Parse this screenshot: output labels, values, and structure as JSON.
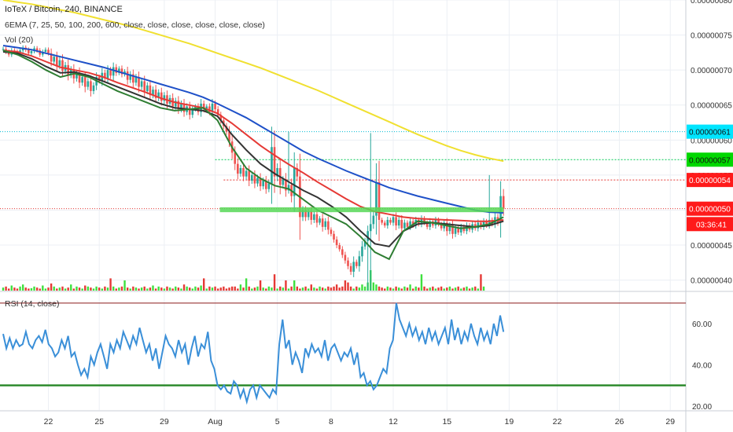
{
  "header": {
    "symbol": "IoTeX / Bitcoin, 240, BINANCE",
    "ema_legend": "6EMA (7, 25, 50, 100, 200, 600, close, close, close, close, close, close)",
    "vol_legend": "Vol (20)",
    "rsi_legend": "RSI (14, close)"
  },
  "colors": {
    "up": "#26a69a",
    "down": "#ef5350",
    "vol_up": "#3ee03e",
    "vol_down": "#e53935",
    "ema_7": "#2e7d32",
    "ema_25": "#333333",
    "ema_50": "#e53935",
    "ema_100": "#1e50c8",
    "ema_200": "#f0e030",
    "rsi_line": "#3a8fd8",
    "grid": "#eceff4",
    "hline_cyan": "#00bcd4",
    "hline_green": "#00c853",
    "hline_red": "#e53935",
    "rsi_upper": "#8b1a1a",
    "rsi_lower": "#2e8b2e"
  },
  "chart_data": {
    "type": "candlestick",
    "price_axis": {
      "ticks": [
        "0.00000040",
        "0.00000045",
        "0.00000050",
        "0.00000055",
        "0.00000060",
        "0.00000065",
        "0.00000070",
        "0.00000075",
        "0.00000080"
      ],
      "range": [
        3.85e-07,
        8e-07
      ]
    },
    "price_labels": [
      {
        "text": "0.00000061",
        "value": 6.12e-07,
        "style": "cyan"
      },
      {
        "text": "0.00000057",
        "value": 5.72e-07,
        "style": "green"
      },
      {
        "text": "0.00000054",
        "value": 5.43e-07,
        "style": "red"
      },
      {
        "text": "0.00000050",
        "value": 5.02e-07,
        "style": "red"
      },
      {
        "text": "03:36:41",
        "value": 4.8e-07,
        "style": "red"
      }
    ],
    "x_ticks": [
      {
        "label": "22",
        "index": 16
      },
      {
        "label": "25",
        "index": 34
      },
      {
        "label": "29",
        "index": 57
      },
      {
        "label": "Aug",
        "index": 75
      },
      {
        "label": "5",
        "index": 97
      },
      {
        "label": "8",
        "index": 116
      },
      {
        "label": "12",
        "index": 138
      },
      {
        "label": "15",
        "index": 157
      },
      {
        "label": "19",
        "index": 179
      },
      {
        "label": "22",
        "index": 196
      },
      {
        "label": "26",
        "index": 218
      },
      {
        "label": "29",
        "index": 236
      }
    ],
    "close_series": [
      0.73,
      0.726,
      0.722,
      0.728,
      0.726,
      0.724,
      0.728,
      0.732,
      0.729,
      0.724,
      0.727,
      0.731,
      0.728,
      0.722,
      0.726,
      0.729,
      0.724,
      0.712,
      0.719,
      0.706,
      0.714,
      0.699,
      0.707,
      0.693,
      0.701,
      0.688,
      0.696,
      0.682,
      0.69,
      0.676,
      0.684,
      0.67,
      0.678,
      0.69,
      0.684,
      0.696,
      0.688,
      0.7,
      0.692,
      0.704,
      0.696,
      0.702,
      0.694,
      0.698,
      0.686,
      0.694,
      0.682,
      0.69,
      0.676,
      0.684,
      0.67,
      0.678,
      0.664,
      0.672,
      0.66,
      0.668,
      0.656,
      0.664,
      0.652,
      0.66,
      0.648,
      0.656,
      0.644,
      0.652,
      0.64,
      0.648,
      0.636,
      0.644,
      0.648,
      0.64,
      0.652,
      0.644,
      0.648,
      0.64,
      0.652,
      0.644,
      0.636,
      0.628,
      0.62,
      0.612,
      0.598,
      0.582,
      0.566,
      0.552,
      0.56,
      0.548,
      0.556,
      0.542,
      0.55,
      0.538,
      0.546,
      0.534,
      0.542,
      0.53,
      0.538,
      0.59,
      0.548,
      0.56,
      0.536,
      0.544,
      0.528,
      0.536,
      0.52,
      0.56,
      0.548,
      0.49,
      0.5,
      0.49,
      0.498,
      0.486,
      0.494,
      0.482,
      0.488,
      0.476,
      0.484,
      0.472,
      0.466,
      0.458,
      0.45,
      0.444,
      0.436,
      0.428,
      0.42,
      0.412,
      0.426,
      0.42,
      0.434,
      0.448,
      0.456,
      0.47,
      0.48,
      0.492,
      0.54,
      0.486,
      0.482,
      0.478,
      0.486,
      0.482,
      0.49,
      0.478,
      0.486,
      0.474,
      0.482,
      0.476,
      0.484,
      0.478,
      0.486,
      0.48,
      0.488,
      0.482,
      0.476,
      0.484,
      0.478,
      0.486,
      0.48,
      0.474,
      0.482,
      0.47,
      0.478,
      0.466,
      0.474,
      0.468,
      0.476,
      0.47,
      0.478,
      0.472,
      0.48,
      0.474,
      0.482,
      0.476,
      0.484,
      0.478,
      0.486,
      0.48,
      0.49,
      0.482,
      0.52,
      0.502
    ],
    "emas": [
      {
        "name": "EMA 200",
        "color_key": "ema_200",
        "values": [
          0.8,
          0.797,
          0.794,
          0.79,
          0.786,
          0.782,
          0.777,
          0.772,
          0.767,
          0.762,
          0.756,
          0.75,
          0.744,
          0.738,
          0.731,
          0.724,
          0.717,
          0.71,
          0.703,
          0.695,
          0.687,
          0.679,
          0.671,
          0.662,
          0.653,
          0.644,
          0.635,
          0.626,
          0.617,
          0.608,
          0.6,
          0.592,
          0.585,
          0.579,
          0.574,
          0.57
        ]
      },
      {
        "name": "EMA 100",
        "color_key": "ema_100",
        "values": [
          0.735,
          0.732,
          0.729,
          0.724,
          0.719,
          0.714,
          0.709,
          0.704,
          0.698,
          0.692,
          0.686,
          0.68,
          0.674,
          0.668,
          0.661,
          0.652,
          0.642,
          0.632,
          0.62,
          0.608,
          0.596,
          0.584,
          0.574,
          0.565,
          0.556,
          0.548,
          0.54,
          0.532,
          0.526,
          0.52,
          0.515,
          0.51,
          0.505,
          0.5,
          0.497,
          0.496
        ]
      },
      {
        "name": "EMA 50",
        "color_key": "ema_50",
        "values": [
          0.728,
          0.726,
          0.72,
          0.712,
          0.704,
          0.7,
          0.696,
          0.69,
          0.682,
          0.675,
          0.668,
          0.66,
          0.654,
          0.65,
          0.646,
          0.638,
          0.624,
          0.608,
          0.592,
          0.578,
          0.565,
          0.553,
          0.54,
          0.528,
          0.516,
          0.505,
          0.498,
          0.494,
          0.49,
          0.488,
          0.487,
          0.486,
          0.485,
          0.484,
          0.484,
          0.486
        ]
      },
      {
        "name": "EMA 25",
        "color_key": "ema_25",
        "values": [
          0.726,
          0.724,
          0.716,
          0.705,
          0.696,
          0.697,
          0.692,
          0.684,
          0.676,
          0.668,
          0.66,
          0.652,
          0.646,
          0.644,
          0.642,
          0.634,
          0.608,
          0.586,
          0.566,
          0.552,
          0.54,
          0.528,
          0.518,
          0.505,
          0.49,
          0.47,
          0.452,
          0.448,
          0.47,
          0.48,
          0.482,
          0.48,
          0.478,
          0.476,
          0.478,
          0.484
        ]
      },
      {
        "name": "EMA 7",
        "color_key": "ema_7",
        "values": [
          0.728,
          0.722,
          0.712,
          0.7,
          0.69,
          0.695,
          0.69,
          0.68,
          0.67,
          0.662,
          0.654,
          0.646,
          0.642,
          0.644,
          0.646,
          0.628,
          0.59,
          0.56,
          0.545,
          0.535,
          0.53,
          0.515,
          0.5,
          0.49,
          0.48,
          0.462,
          0.44,
          0.43,
          0.47,
          0.484,
          0.482,
          0.478,
          0.474,
          0.476,
          0.48,
          0.49
        ]
      }
    ],
    "volume_relative": [
      0.15,
      0.2,
      0.1,
      0.25,
      0.15,
      0.1,
      0.2,
      0.3,
      0.15,
      0.1,
      0.12,
      0.2,
      0.15,
      0.1,
      0.25,
      0.1,
      0.15,
      0.35,
      0.2,
      0.1,
      0.15,
      0.2,
      0.1,
      0.15,
      0.3,
      0.1,
      0.2,
      0.15,
      0.1,
      0.25,
      0.2,
      0.15,
      0.1,
      0.2,
      0.15,
      0.1,
      0.2,
      0.15,
      0.6,
      0.2,
      0.1,
      0.15,
      0.2,
      0.5,
      0.15,
      0.1,
      0.2,
      0.15,
      0.1,
      0.15,
      0.2,
      0.1,
      0.15,
      0.25,
      0.1,
      0.2,
      0.15,
      0.1,
      0.2,
      0.15,
      0.1,
      0.2,
      0.15,
      0.1,
      0.3,
      0.2,
      0.15,
      0.1,
      0.2,
      0.15,
      0.25,
      0.6,
      0.1,
      0.2,
      0.15,
      0.2,
      0.1,
      0.15,
      0.2,
      0.1,
      0.15,
      0.2,
      0.2,
      0.1,
      0.3,
      0.15,
      0.6,
      0.2,
      0.1,
      0.15,
      0.2,
      0.5,
      0.15,
      0.1,
      0.2,
      0.15,
      0.8,
      0.1,
      0.2,
      0.15,
      0.5,
      0.1,
      0.2,
      0.5,
      0.2,
      0.1,
      0.15,
      0.2,
      0.1,
      0.3,
      0.15,
      0.1,
      0.2,
      0.15,
      0.1,
      0.2,
      0.15,
      0.2,
      0.3,
      0.15,
      0.2,
      0.5,
      0.4,
      0.2,
      0.1,
      0.2,
      0.15,
      0.3,
      0.2,
      0.4,
      1.0,
      0.4,
      0.3,
      0.2,
      0.15,
      0.1,
      0.2,
      0.15,
      0.1,
      0.2,
      0.15,
      0.1,
      0.2,
      0.15,
      0.3,
      0.1,
      0.2,
      0.15,
      0.8,
      0.2,
      0.1,
      0.15,
      0.2,
      0.1,
      0.15,
      0.2,
      0.1,
      0.15,
      0.2,
      0.1,
      0.15,
      0.2,
      0.1,
      0.15,
      0.2,
      0.1,
      0.15,
      0.2,
      0.1,
      0.8,
      0.2
    ],
    "rsi": {
      "ticks": [
        "20.00",
        "40.00",
        "60.00"
      ],
      "range": [
        18,
        73
      ],
      "upper_band": 70,
      "lower_band": 30,
      "values": [
        55,
        48,
        53,
        48,
        52,
        49,
        50,
        56,
        50,
        48,
        52,
        54,
        51,
        57,
        50,
        48,
        44,
        46,
        52,
        48,
        54,
        44,
        46,
        40,
        35,
        38,
        34,
        44,
        40,
        46,
        50,
        44,
        38,
        50,
        46,
        52,
        48,
        56,
        52,
        48,
        54,
        50,
        58,
        52,
        46,
        50,
        42,
        48,
        38,
        46,
        54,
        50,
        48,
        44,
        52,
        46,
        50,
        40,
        48,
        54,
        44,
        50,
        48,
        56,
        42,
        38,
        30,
        28,
        30,
        27,
        26,
        32,
        30,
        24,
        28,
        22,
        28,
        30,
        24,
        30,
        28,
        26,
        24,
        28,
        26,
        50,
        62,
        48,
        52,
        40,
        46,
        42,
        36,
        48,
        44,
        50,
        46,
        48,
        44,
        52,
        42,
        48,
        50,
        46,
        42,
        46,
        44,
        48,
        40,
        46,
        34,
        36,
        30,
        32,
        28,
        30,
        34,
        38,
        36,
        48,
        52,
        70,
        62,
        58,
        54,
        60,
        54,
        58,
        52,
        56,
        50,
        58,
        52,
        56,
        50,
        54,
        58,
        50,
        62,
        52,
        58,
        50,
        56,
        52,
        60,
        54,
        50,
        58,
        52,
        56,
        50,
        60,
        54,
        64,
        56
      ]
    }
  }
}
